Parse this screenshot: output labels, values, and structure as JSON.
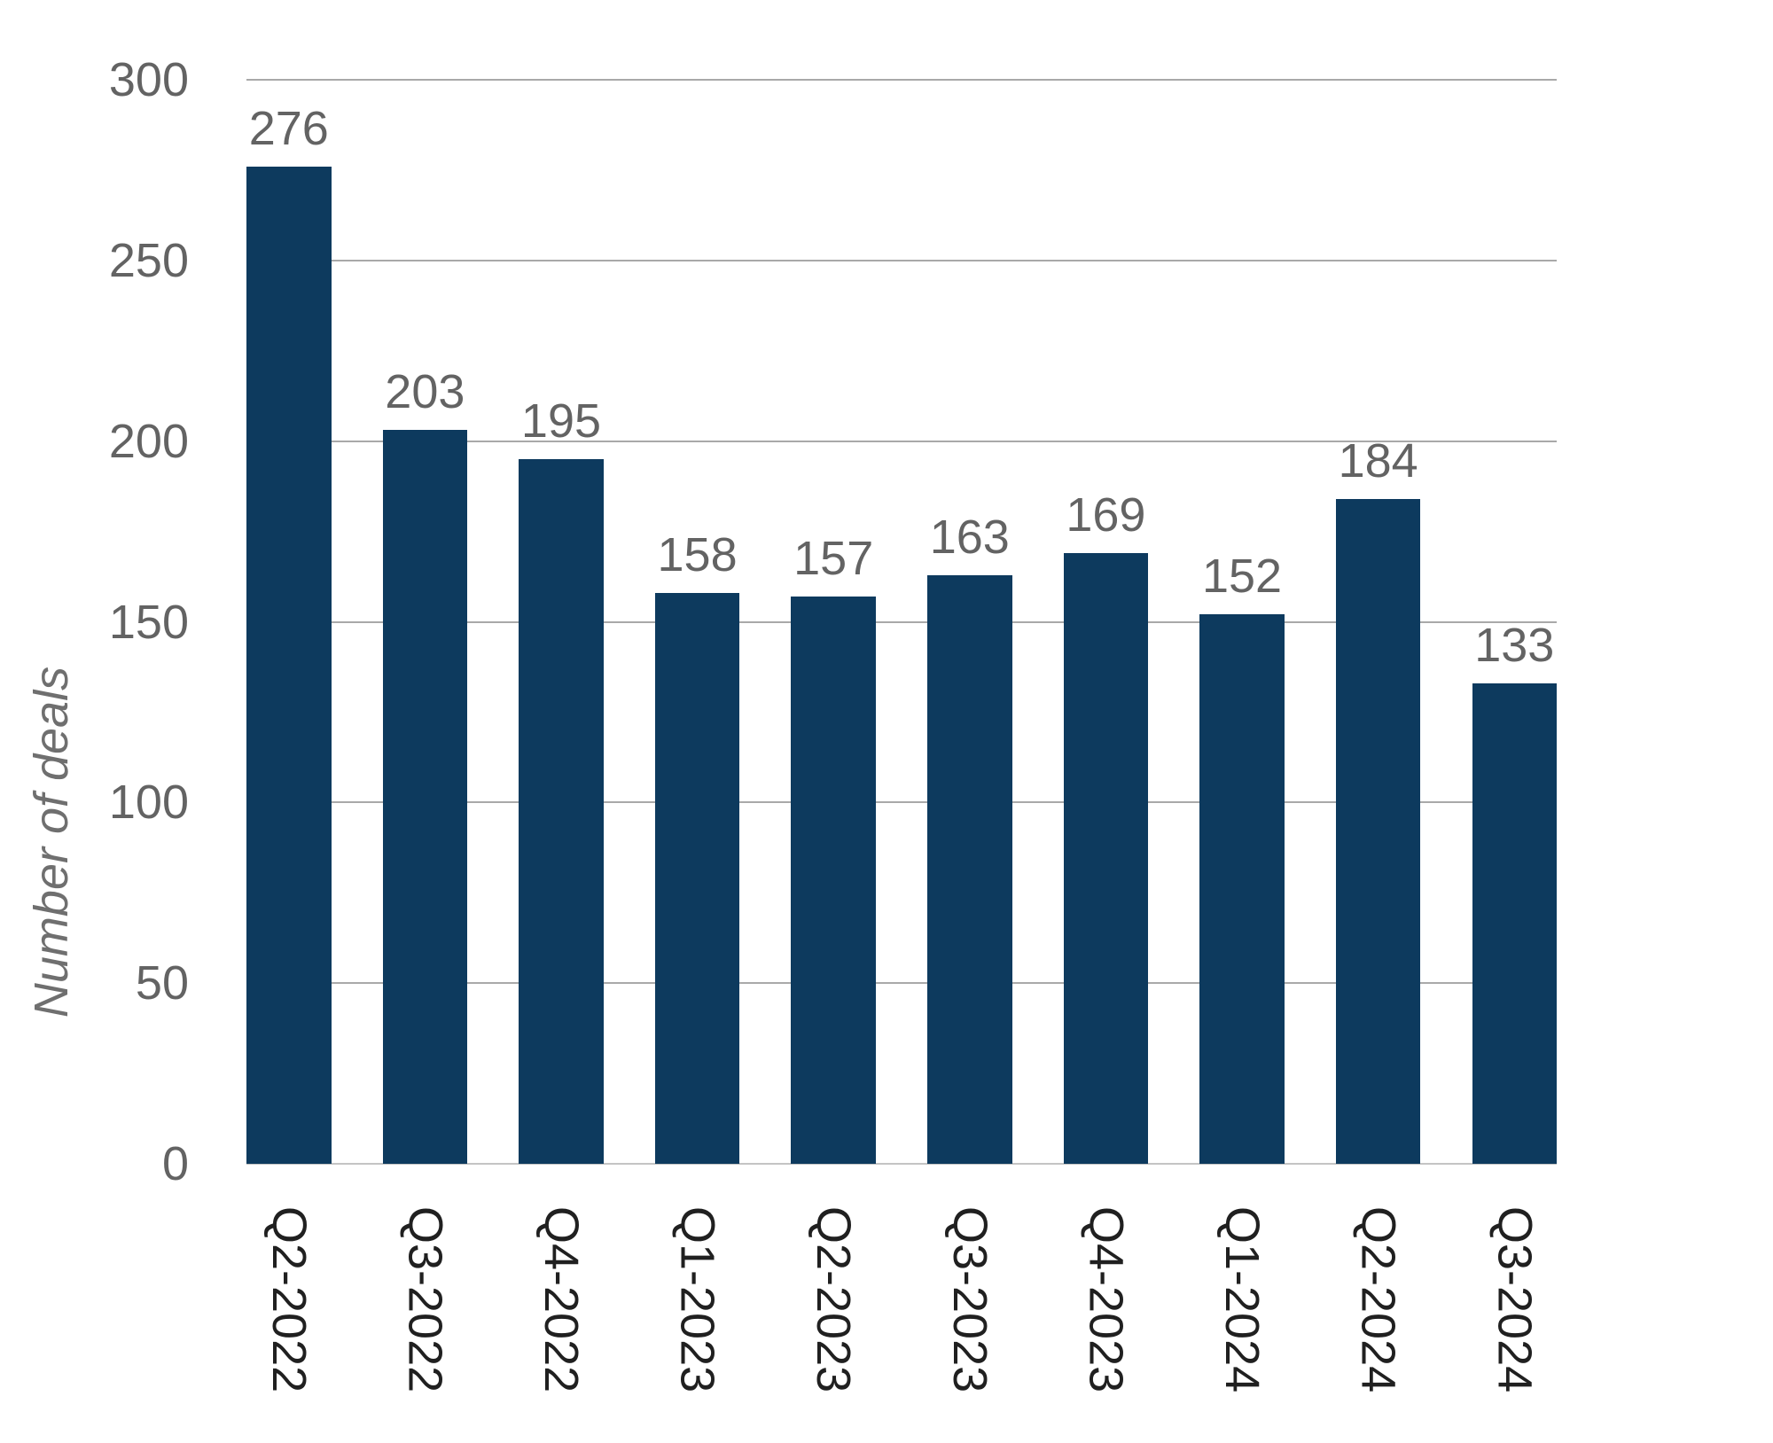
{
  "chart_data": {
    "type": "bar",
    "categories": [
      "Q2-2022",
      "Q3-2022",
      "Q4-2022",
      "Q1-2023",
      "Q2-2023",
      "Q3-2023",
      "Q4-2023",
      "Q1-2024",
      "Q2-2024",
      "Q3-2024"
    ],
    "values": [
      276,
      203,
      195,
      158,
      157,
      163,
      169,
      152,
      184,
      133
    ],
    "title": "",
    "xlabel": "",
    "ylabel": "Number of deals",
    "ylim": [
      0,
      300
    ],
    "yticks": [
      0,
      50,
      100,
      150,
      200,
      250,
      300
    ],
    "grid": true,
    "legend": false,
    "data_labels": true,
    "colors": {
      "bar": "#0d3a5e",
      "value_label": "#636363",
      "y_tick_label": "#636363",
      "x_tick_label": "#202020",
      "axis_title": "#6f6f6f",
      "gridline": "#a9a9a9",
      "baseline": "#c4c4c4",
      "background": "#ffffff"
    }
  }
}
